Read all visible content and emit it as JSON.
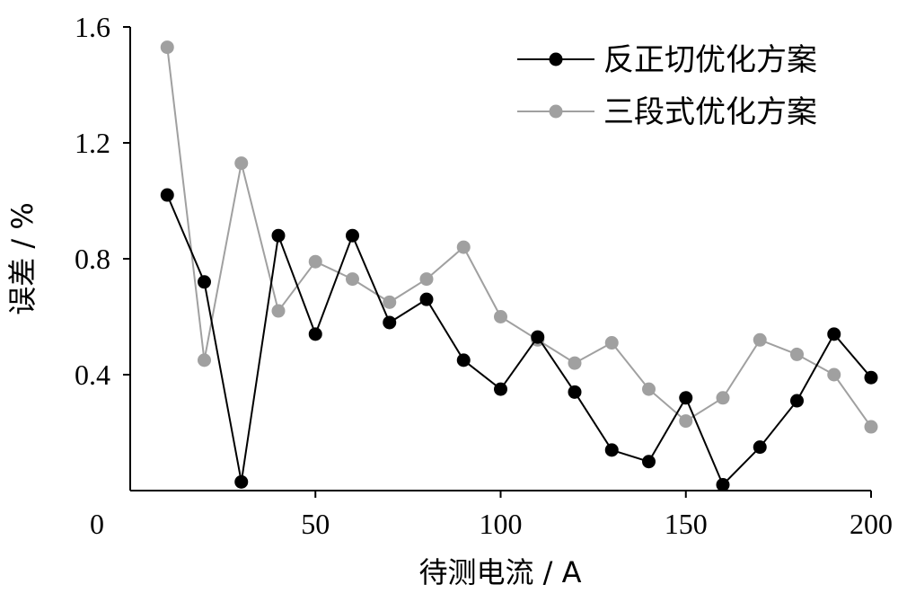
{
  "chart_data": {
    "type": "line",
    "title": "",
    "xlabel": "待测电流 / A",
    "ylabel": "误差 / %",
    "xlim": [
      0,
      200
    ],
    "ylim": [
      0,
      1.6
    ],
    "x_ticks": [
      "0",
      "50",
      "100",
      "150",
      "200"
    ],
    "y_ticks": [
      "0.4",
      "0.8",
      "1.2",
      "1.6"
    ],
    "grid": false,
    "legend_position": "top-right",
    "series": [
      {
        "name": "反正切优化方案",
        "color": "#000000",
        "x": [
          10,
          20,
          30,
          40,
          50,
          60,
          70,
          80,
          90,
          100,
          110,
          120,
          130,
          140,
          150,
          160,
          170,
          180,
          190,
          200
        ],
        "y": [
          1.02,
          0.72,
          0.03,
          0.88,
          0.54,
          0.88,
          0.58,
          0.66,
          0.45,
          0.35,
          0.53,
          0.34,
          0.14,
          0.1,
          0.32,
          0.02,
          0.15,
          0.31,
          0.54,
          0.39
        ]
      },
      {
        "name": "三段式优化方案",
        "color": "#a0a0a0",
        "x": [
          10,
          20,
          30,
          40,
          50,
          60,
          70,
          80,
          90,
          100,
          110,
          120,
          130,
          140,
          150,
          160,
          170,
          180,
          190,
          200
        ],
        "y": [
          1.53,
          0.45,
          1.13,
          0.62,
          0.79,
          0.73,
          0.65,
          0.73,
          0.84,
          0.6,
          0.52,
          0.44,
          0.51,
          0.35,
          0.24,
          0.32,
          0.52,
          0.47,
          0.4,
          0.22
        ]
      }
    ]
  }
}
